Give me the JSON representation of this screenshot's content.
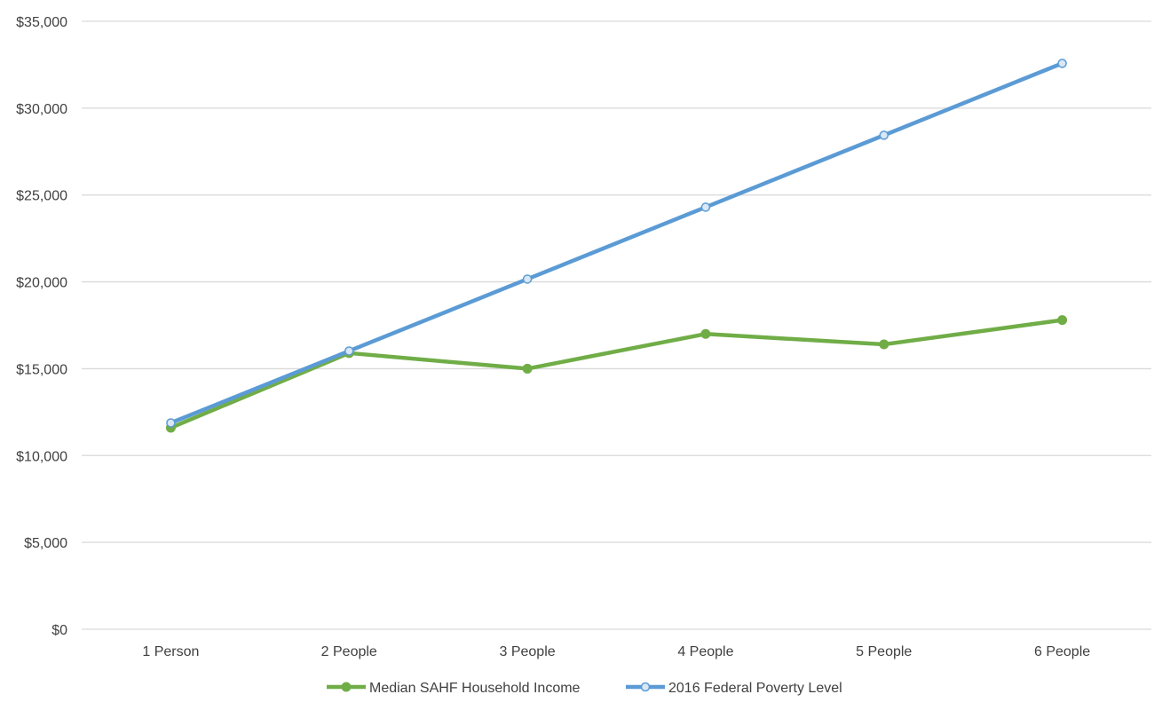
{
  "chart_data": {
    "type": "line",
    "categories": [
      "1 Person",
      "2 People",
      "3 People",
      "4 People",
      "5 People",
      "6 People"
    ],
    "series": [
      {
        "name": "Median SAHF Household Income",
        "values": [
          11600,
          15900,
          15000,
          17000,
          16400,
          17800
        ],
        "color": "#70ad47",
        "marker": "filled-circle"
      },
      {
        "name": "2016 Federal Poverty Level",
        "values": [
          11880,
          16020,
          20160,
          24300,
          28440,
          32580
        ],
        "color": "#5b9bd5",
        "marker": "hollow-circle"
      }
    ],
    "ylim": [
      0,
      35000
    ],
    "yticks": [
      0,
      5000,
      10000,
      15000,
      20000,
      25000,
      30000,
      35000
    ],
    "ytick_labels": [
      "$0",
      "$5,000",
      "$10,000",
      "$15,000",
      "$20,000",
      "$25,000",
      "$30,000",
      "$35,000"
    ],
    "grid": true,
    "legend_position": "bottom"
  }
}
